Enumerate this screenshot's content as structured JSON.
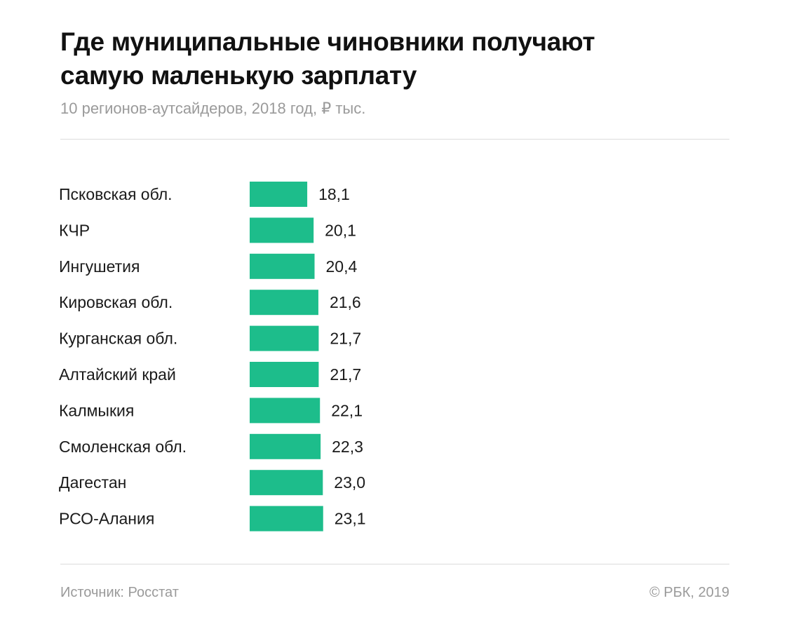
{
  "chart_data": {
    "type": "bar",
    "orientation": "horizontal",
    "title": "Где муниципальные чиновники получают самую маленькую зарплату",
    "title_lines": [
      "Где муниципальные чиновники получают",
      "самую маленькую зарплату"
    ],
    "subtitle": "10 регионов-аутсайдеров, 2018 год, ₽ тыс.",
    "categories": [
      "Псковская обл.",
      "КЧР",
      "Ингушетия",
      "Кировская обл.",
      "Курганская обл.",
      "Алтайский край",
      "Калмыкия",
      "Смоленская обл.",
      "Дагестан",
      "РСО-Алания"
    ],
    "values": [
      18.1,
      20.1,
      20.4,
      21.6,
      21.7,
      21.7,
      22.1,
      22.3,
      23.0,
      23.1
    ],
    "value_labels": [
      "18,1",
      "20,1",
      "20,4",
      "21,6",
      "21,7",
      "21,7",
      "22,1",
      "22,3",
      "23,0",
      "23,1"
    ],
    "bar_color": "#1dbd8b",
    "grid": false,
    "legend": "none"
  },
  "footer": {
    "source": "Источник: Росстат",
    "copyright": "© РБК, 2019"
  }
}
